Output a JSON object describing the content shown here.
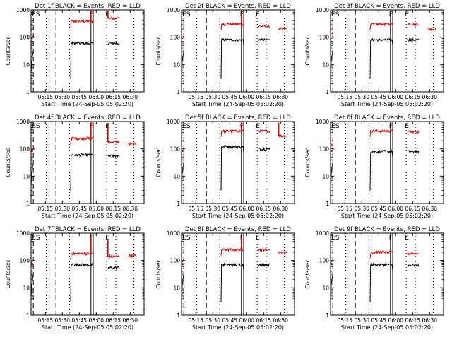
{
  "chart_data": {
    "type": "line",
    "layout": "3x3 grid",
    "title_template": "Det {det} BLACK = Events, RED = LLD",
    "ylabel": "Counts/sec",
    "xlabel": "Start Time (24-Sep-05 05:02:20)",
    "yscale": "log",
    "ylim": [
      1,
      1000
    ],
    "y_ticks": [
      {
        "v": 1,
        "label": "1"
      },
      {
        "v": 10,
        "label": "10"
      },
      {
        "v": 100,
        "label": "100"
      },
      {
        "v": 1000,
        "label": "1000"
      }
    ],
    "xlim_min": [
      0,
      100
    ],
    "x_ticks": [
      {
        "v": 12.67,
        "label": "05:15"
      },
      {
        "v": 27.67,
        "label": "05:30"
      },
      {
        "v": 42.67,
        "label": "05:45"
      },
      {
        "v": 57.67,
        "label": "06:00"
      },
      {
        "v": 72.67,
        "label": "06:15"
      },
      {
        "v": 87.67,
        "label": "06:30"
      }
    ],
    "vertical_markers": [
      {
        "x": 2,
        "style": "dashed",
        "label": "ES"
      },
      {
        "x": 13.5,
        "style": "dotted",
        "label": ""
      },
      {
        "x": 22,
        "style": "dashed",
        "label": ""
      },
      {
        "x": 34,
        "style": "dotted",
        "label": ""
      },
      {
        "x": 53,
        "style": "solid",
        "label": "F"
      },
      {
        "x": 55,
        "style": "solid",
        "label": ""
      },
      {
        "x": 67,
        "style": "dotted",
        "label": "E"
      },
      {
        "x": 75,
        "style": "dotted",
        "label": ""
      },
      {
        "x": 91,
        "style": "dotted",
        "label": ""
      }
    ],
    "segments_min": [
      [
        0,
        2
      ],
      [
        35,
        55
      ],
      [
        68,
        78
      ],
      [
        86,
        93
      ]
    ],
    "panels": [
      {
        "det": "1f",
        "events": [
          30,
          60,
          60,
          0
        ],
        "lld": [
          100,
          380,
          500,
          0
        ],
        "lld_spikes": [
          {
            "x": 53,
            "y": 1000
          },
          {
            "x": 68,
            "y": 900
          }
        ]
      },
      {
        "det": "2f",
        "events": [
          30,
          80,
          80,
          0
        ],
        "lld": [
          100,
          300,
          250,
          200
        ],
        "lld_spikes": [
          {
            "x": 53,
            "y": 700
          }
        ]
      },
      {
        "det": "3f",
        "events": [
          30,
          80,
          80,
          0
        ],
        "lld": [
          150,
          300,
          300,
          200
        ],
        "lld_spikes": []
      },
      {
        "det": "4f",
        "events": [
          30,
          60,
          55,
          0
        ],
        "lld": [
          100,
          240,
          180,
          150
        ],
        "lld_spikes": [
          {
            "x": 53,
            "y": 1000
          },
          {
            "x": 68,
            "y": 800
          }
        ]
      },
      {
        "det": "5f",
        "events": [
          30,
          120,
          100,
          0
        ],
        "lld": [
          100,
          450,
          450,
          300
        ],
        "lld_spikes": [
          {
            "x": 53,
            "y": 1000
          },
          {
            "x": 86,
            "y": 900
          }
        ]
      },
      {
        "det": "6f",
        "events": [
          30,
          80,
          80,
          0
        ],
        "lld": [
          150,
          450,
          420,
          0
        ],
        "lld_spikes": []
      },
      {
        "det": "7f",
        "events": [
          30,
          70,
          55,
          0
        ],
        "lld": [
          100,
          180,
          140,
          150
        ],
        "lld_spikes": [
          {
            "x": 53,
            "y": 700
          },
          {
            "x": 68,
            "y": 600
          }
        ]
      },
      {
        "det": "8f",
        "events": [
          30,
          70,
          70,
          0
        ],
        "lld": [
          100,
          250,
          250,
          200
        ],
        "lld_spikes": [
          {
            "x": 53,
            "y": 700
          }
        ]
      },
      {
        "det": "9f",
        "events": [
          30,
          70,
          65,
          0
        ],
        "lld": [
          100,
          200,
          180,
          0
        ],
        "lld_spikes": []
      }
    ],
    "colors": {
      "events": "#000000",
      "lld": "#dd0000",
      "axes": "#000000"
    }
  }
}
